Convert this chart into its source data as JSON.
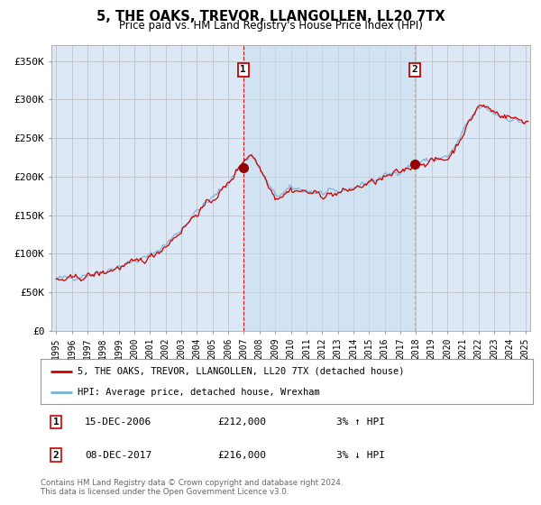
{
  "title": "5, THE OAKS, TREVOR, LLANGOLLEN, LL20 7TX",
  "subtitle": "Price paid vs. HM Land Registry's House Price Index (HPI)",
  "footer": "Contains HM Land Registry data © Crown copyright and database right 2024.\nThis data is licensed under the Open Government Licence v3.0.",
  "ylabel_ticks": [
    "£0",
    "£50K",
    "£100K",
    "£150K",
    "£200K",
    "£250K",
    "£300K",
    "£350K"
  ],
  "ytick_values": [
    0,
    50000,
    100000,
    150000,
    200000,
    250000,
    300000,
    350000
  ],
  "ylim": [
    0,
    370000
  ],
  "xlim_start": 1994.7,
  "xlim_end": 2025.3,
  "sale1_year": 2006.96,
  "sale1_price": 212000,
  "sale1_label": "1",
  "sale1_date": "15-DEC-2006",
  "sale1_amount": "£212,000",
  "sale1_hpi": "3% ↑ HPI",
  "sale2_year": 2017.92,
  "sale2_price": 216000,
  "sale2_label": "2",
  "sale2_date": "08-DEC-2017",
  "sale2_amount": "£216,000",
  "sale2_hpi": "3% ↓ HPI",
  "legend1": "5, THE OAKS, TREVOR, LLANGOLLEN, LL20 7TX (detached house)",
  "legend2": "HPI: Average price, detached house, Wrexham",
  "price_line_color": "#cc0000",
  "hpi_line_color": "#7ab0d4",
  "vline1_color": "#cc0000",
  "vline2_color": "#aaaaaa",
  "bg_color": "#dce8f5",
  "bg_color2": "#c8ddf0",
  "grid_color": "#bbbbbb",
  "box_color": "#cc0000",
  "dot_color": "#990000"
}
